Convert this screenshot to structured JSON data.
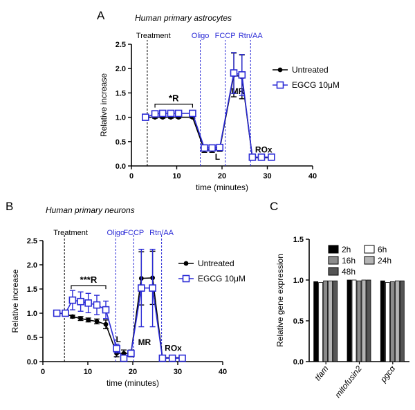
{
  "colors": {
    "untreated": "#000000",
    "egcg": "#2b2bd6",
    "injection_line_blue": "#2b2bd6",
    "bar_2h": "#000000",
    "bar_6h": "#ffffff",
    "bar_16h": "#8c8c8c",
    "bar_24h": "#b4b4b4",
    "bar_48h": "#555555"
  },
  "chart_data": [
    {
      "panel": "A",
      "type": "line",
      "title": "Human primary astrocytes",
      "xlabel": "time (minutes)",
      "ylabel": "Relative increase",
      "xlim": [
        0,
        40
      ],
      "ylim": [
        0,
        2.5
      ],
      "xticks": [
        0,
        10,
        20,
        30,
        40
      ],
      "yticks": [
        0.0,
        0.5,
        1.0,
        1.5,
        2.0,
        2.5
      ],
      "legend_position": "right",
      "injections": [
        {
          "label": "Treatment",
          "x": 3.5,
          "style": "black"
        },
        {
          "label": "Oligo",
          "x": 15.2,
          "style": "blue"
        },
        {
          "label": "FCCP",
          "x": 20.7,
          "style": "blue"
        },
        {
          "label": "Rtn/AA",
          "x": 26.3,
          "style": "blue"
        }
      ],
      "bracket": {
        "label": "*R",
        "x_start": 5.2,
        "x_end": 13.5,
        "y": 1.27
      },
      "annotations": [
        {
          "text": "L",
          "x": 19.0,
          "y": 0.13
        },
        {
          "text": "MR",
          "x": 23.5,
          "y": 1.48
        },
        {
          "text": "ROx",
          "x": 29.2,
          "y": 0.28
        }
      ],
      "series": [
        {
          "name": "Untreated",
          "marker": "filled-circle",
          "x": [
            3.1,
            5.2,
            6.9,
            8.7,
            10.4,
            13.5,
            16.1,
            17.8,
            19.5,
            22.6,
            24.4,
            26.7,
            28.7,
            30.9
          ],
          "y": [
            1.0,
            1.0,
            1.0,
            1.0,
            1.0,
            1.0,
            0.33,
            0.33,
            0.35,
            1.87,
            1.83,
            0.17,
            0.17,
            0.17
          ],
          "err": [
            0.02,
            0.02,
            0.02,
            0.02,
            0.02,
            0.02,
            0.05,
            0.05,
            0.05,
            0.45,
            0.45,
            0.03,
            0.03,
            0.03
          ]
        },
        {
          "name": "EGCG 10μM",
          "marker": "open-square",
          "x": [
            3.1,
            5.2,
            6.9,
            8.7,
            10.4,
            13.5,
            16.1,
            17.8,
            19.5,
            22.6,
            24.4,
            26.7,
            28.7,
            30.9
          ],
          "y": [
            1.0,
            1.07,
            1.08,
            1.08,
            1.08,
            1.08,
            0.37,
            0.37,
            0.38,
            1.91,
            1.87,
            0.18,
            0.18,
            0.18
          ],
          "err": [
            0.02,
            0.04,
            0.04,
            0.04,
            0.04,
            0.04,
            0.05,
            0.05,
            0.05,
            0.42,
            0.42,
            0.03,
            0.03,
            0.03
          ]
        }
      ]
    },
    {
      "panel": "B",
      "type": "line",
      "title": "Human primary neurons",
      "xlabel": "time (minutes)",
      "ylabel": "Relative increase",
      "xlim": [
        0,
        40
      ],
      "ylim": [
        0,
        2.5
      ],
      "xticks": [
        0,
        10,
        20,
        30,
        40
      ],
      "yticks": [
        0.0,
        0.5,
        1.0,
        1.5,
        2.0,
        2.5
      ],
      "legend_position": "right",
      "injections": [
        {
          "label": "Treatment",
          "x": 4.8,
          "style": "black"
        },
        {
          "label": "Oligo",
          "x": 16.2,
          "style": "blue"
        },
        {
          "label": "FCCP",
          "x": 20.2,
          "style": "blue"
        },
        {
          "label": "Rtn/AA",
          "x": 26.4,
          "style": "blue"
        }
      ],
      "bracket": {
        "label": "***R",
        "x_start": 6.3,
        "x_end": 14.0,
        "y": 1.57
      },
      "annotations": [
        {
          "text": "L",
          "x": 16.8,
          "y": 0.4
        },
        {
          "text": "MR",
          "x": 22.6,
          "y": 0.34
        },
        {
          "text": "ROx",
          "x": 29.0,
          "y": 0.22
        }
      ],
      "series": [
        {
          "name": "Untreated",
          "marker": "filled-circle",
          "x": [
            3.1,
            5.0,
            6.6,
            8.4,
            10.1,
            12.0,
            14.0,
            16.4,
            18.0,
            19.6,
            21.9,
            24.4,
            26.6,
            28.8,
            31.0
          ],
          "y": [
            1.0,
            0.99,
            0.93,
            0.89,
            0.86,
            0.83,
            0.77,
            0.17,
            0.17,
            0.17,
            1.72,
            1.73,
            0.08,
            0.08,
            0.08
          ],
          "err": [
            0.02,
            0.02,
            0.03,
            0.04,
            0.04,
            0.05,
            0.09,
            0.07,
            0.07,
            0.07,
            0.55,
            0.55,
            0.03,
            0.03,
            0.03
          ]
        },
        {
          "name": "EGCG 10μM",
          "marker": "open-square",
          "x": [
            3.1,
            5.0,
            6.6,
            8.4,
            10.1,
            12.0,
            14.0,
            16.4,
            18.0,
            19.6,
            21.9,
            24.4,
            26.6,
            28.8,
            31.0
          ],
          "y": [
            1.0,
            1.0,
            1.27,
            1.24,
            1.21,
            1.17,
            1.07,
            0.27,
            0.07,
            0.17,
            1.52,
            1.52,
            0.07,
            0.07,
            0.07
          ],
          "err": [
            0.02,
            0.02,
            0.2,
            0.2,
            0.2,
            0.2,
            0.18,
            0.09,
            0.05,
            0.06,
            0.8,
            0.8,
            0.03,
            0.03,
            0.03
          ]
        }
      ]
    },
    {
      "panel": "C",
      "type": "bar",
      "ylabel": "Relative gene expression",
      "ylim": [
        0,
        1.5
      ],
      "yticks": [
        0.0,
        0.5,
        1.0,
        1.5
      ],
      "categories": [
        "tfam",
        "mitofusin2",
        "pgcα"
      ],
      "legend_position": "top",
      "series": [
        {
          "name": "2h",
          "values": [
            0.98,
            1.0,
            0.99
          ]
        },
        {
          "name": "6h",
          "values": [
            0.97,
            1.0,
            0.97
          ]
        },
        {
          "name": "16h",
          "values": [
            0.99,
            0.99,
            0.98
          ]
        },
        {
          "name": "24h",
          "values": [
            0.99,
            1.0,
            0.99
          ]
        },
        {
          "name": "48h",
          "values": [
            0.99,
            1.0,
            0.99
          ]
        }
      ]
    }
  ],
  "panel_labels": {
    "a": "A",
    "b": "B",
    "c": "C"
  }
}
